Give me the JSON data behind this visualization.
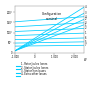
{
  "title": "Configuration\nnominal",
  "xlim": [
    -1000,
    2500
  ],
  "ylim": [
    0,
    230
  ],
  "xticks": [
    -1000,
    0,
    1000,
    2000
  ],
  "xtick_labels": [
    "-1 000",
    "0",
    "1 000",
    "2 000"
  ],
  "yticks": [
    0,
    50,
    100,
    150,
    200
  ],
  "ytick_labels": [
    "0",
    "50°",
    "100°",
    "150°",
    "200°"
  ],
  "line_color": "#00ccff",
  "steep_lines": [
    {
      "x0": -1000,
      "y0": 10,
      "x1": 2500,
      "y1": 225
    },
    {
      "x0": -1000,
      "y0": 10,
      "x1": 2500,
      "y1": 195
    },
    {
      "x0": -1000,
      "y0": 10,
      "x1": 2500,
      "y1": 165
    },
    {
      "x0": -1000,
      "y0": 10,
      "x1": 2500,
      "y1": 138
    }
  ],
  "flat_lines": [
    {
      "x0": -1000,
      "y0": 153,
      "x1": 2500,
      "y1": 178
    },
    {
      "x0": -1000,
      "y0": 128,
      "x1": 2500,
      "y1": 148
    },
    {
      "x0": -1000,
      "y0": 105,
      "x1": 2500,
      "y1": 120
    },
    {
      "x0": -1000,
      "y0": 85,
      "x1": 2500,
      "y1": 97
    },
    {
      "x0": -1000,
      "y0": 65,
      "x1": 2500,
      "y1": 73
    },
    {
      "x0": -1000,
      "y0": 48,
      "x1": 2500,
      "y1": 54
    },
    {
      "x0": -1000,
      "y0": 33,
      "x1": 2500,
      "y1": 37
    }
  ],
  "right_labels_steep": [
    {
      "label": "4",
      "y": 225
    },
    {
      "label": "3",
      "y": 195
    },
    {
      "label": "2",
      "y": 165
    },
    {
      "label": "1",
      "y": 138
    }
  ],
  "right_labels_flat": [
    {
      "label": "4",
      "y": 178
    },
    {
      "label": "3",
      "y": 148
    },
    {
      "label": "2",
      "y": 120
    },
    {
      "label": "1",
      "y": 97
    },
    {
      "label": "6",
      "y": 73
    },
    {
      "label": "5",
      "y": 54
    },
    {
      "label": "7",
      "y": 37
    }
  ],
  "legend_items": [
    "1- Rotor Joules losses",
    "2- Stator Joules losses",
    "3- Stator Iron losses",
    "4- Extra other losses"
  ],
  "bg_color": "#ffffff",
  "line_width": 0.55,
  "xlabel_unit": "W"
}
